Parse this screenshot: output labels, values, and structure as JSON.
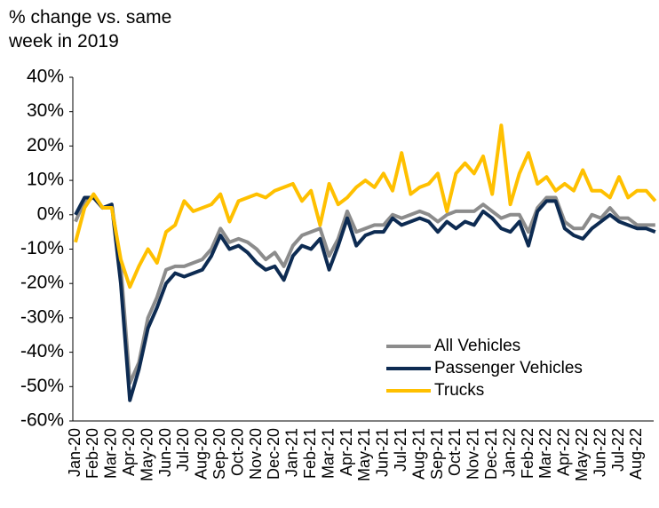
{
  "chart_data": {
    "type": "line",
    "ylabel": "% change vs. same week in 2019",
    "categories": [
      "Jan-20",
      null,
      "Feb-20",
      null,
      "Mar-20",
      null,
      "Apr-20",
      null,
      "May-20",
      null,
      "Jun-20",
      null,
      "Jul-20",
      null,
      "Aug-20",
      null,
      "Sep-20",
      null,
      "Oct-20",
      null,
      "Nov-20",
      null,
      "Dec-20",
      null,
      "Jan-21",
      null,
      "Feb-21",
      null,
      "Mar-21",
      null,
      "Apr-21",
      null,
      "May-21",
      null,
      "Jun-21",
      null,
      "Jul-21",
      null,
      "Aug-21",
      null,
      "Sep-21",
      null,
      "Oct-21",
      null,
      "Nov-21",
      null,
      "Dec-21",
      null,
      "Jan-22",
      null,
      "Feb-22",
      null,
      "Mar-22",
      null,
      "Apr-22",
      null,
      "May-22",
      null,
      "Jun-22",
      null,
      "Jul-22",
      null,
      "Aug-22",
      null,
      null
    ],
    "series": [
      {
        "name": "All Vehicles",
        "color": "#8c8c8c",
        "values": [
          -2,
          4,
          5,
          2,
          3,
          -15,
          -49,
          -43,
          -30,
          -24,
          -16,
          -15,
          -15,
          -14,
          -13,
          -10,
          -4,
          -8,
          -7,
          -8,
          -10,
          -13,
          -11,
          -15,
          -9,
          -6,
          -5,
          -4,
          -12,
          -7,
          1,
          -5,
          -4,
          -3,
          -3,
          0,
          -1,
          0,
          1,
          0,
          -2,
          0,
          1,
          1,
          1,
          3,
          1,
          -1,
          0,
          0,
          -5,
          2,
          5,
          5,
          -2,
          -4,
          -4,
          0,
          -1,
          2,
          -1,
          -1,
          -3,
          -3,
          -3
        ]
      },
      {
        "name": "Passenger Vehicles",
        "color": "#0d2b52",
        "values": [
          0,
          5,
          5,
          2,
          3,
          -20,
          -54,
          -45,
          -33,
          -27,
          -20,
          -17,
          -18,
          -17,
          -16,
          -12,
          -6,
          -10,
          -9,
          -11,
          -14,
          -16,
          -15,
          -19,
          -12,
          -9,
          -10,
          -7,
          -16,
          -9,
          -1,
          -9,
          -6,
          -5,
          -5,
          -1,
          -3,
          -2,
          -1,
          -2,
          -5,
          -2,
          -4,
          -2,
          -3,
          1,
          -1,
          -4,
          -5,
          -2,
          -9,
          1,
          4,
          4,
          -4,
          -6,
          -7,
          -4,
          -2,
          0,
          -2,
          -3,
          -4,
          -4,
          -5
        ]
      },
      {
        "name": "Trucks",
        "color": "#ffc000",
        "values": [
          -8,
          2,
          6,
          2,
          2,
          -13,
          -21,
          -15,
          -10,
          -14,
          -5,
          -3,
          4,
          1,
          2,
          3,
          6,
          -2,
          4,
          5,
          6,
          5,
          7,
          8,
          9,
          4,
          7,
          -3,
          9,
          3,
          5,
          8,
          10,
          8,
          12,
          7,
          18,
          6,
          8,
          9,
          12,
          1,
          12,
          15,
          12,
          17,
          6,
          26,
          3,
          12,
          18,
          9,
          11,
          7,
          9,
          7,
          13,
          7,
          7,
          5,
          11,
          5,
          7,
          7,
          4
        ]
      }
    ],
    "ylim": [
      -60,
      40
    ],
    "yticks": [
      {
        "value": -60,
        "label": "-60%"
      },
      {
        "value": -50,
        "label": "-50%"
      },
      {
        "value": -40,
        "label": "-40%"
      },
      {
        "value": -30,
        "label": "-30%"
      },
      {
        "value": -20,
        "label": "-20%"
      },
      {
        "value": -10,
        "label": "-10%"
      },
      {
        "value": 0,
        "label": "0%"
      },
      {
        "value": 10,
        "label": "10%"
      },
      {
        "value": 20,
        "label": "20%"
      },
      {
        "value": 30,
        "label": "30%"
      },
      {
        "value": 40,
        "label": "40%"
      }
    ],
    "grid": false,
    "legend": "lower right"
  }
}
